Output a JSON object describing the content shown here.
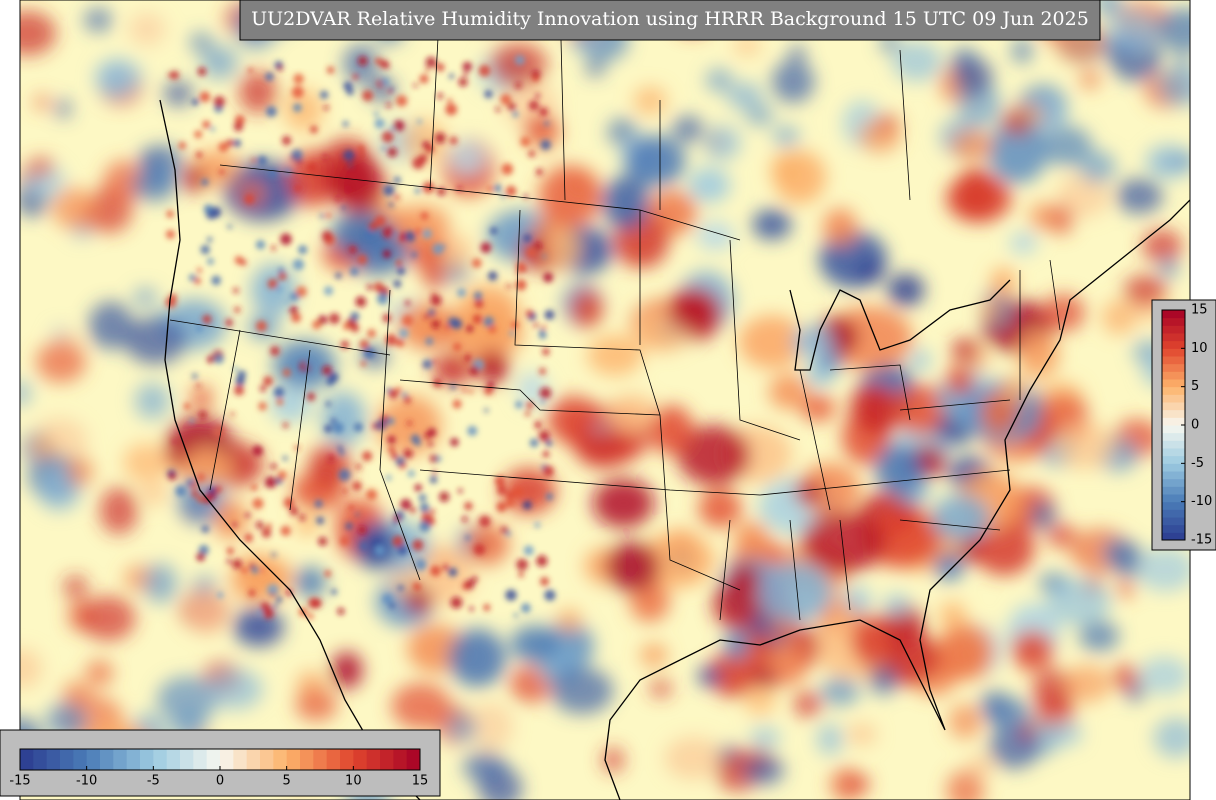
{
  "title": "UU2DVAR Relative Humidity Innovation using HRRR Background 15 UTC 09 Jun 2025",
  "colorbar_horizontal": {
    "limits": [
      -15,
      15
    ],
    "ticks": [
      -15,
      -10,
      -5,
      0,
      5,
      10,
      15
    ]
  },
  "colorbar_vertical": {
    "limits": [
      -15,
      15
    ],
    "ticks": [
      15,
      10,
      5,
      0,
      -5,
      -10,
      -15
    ]
  }
}
